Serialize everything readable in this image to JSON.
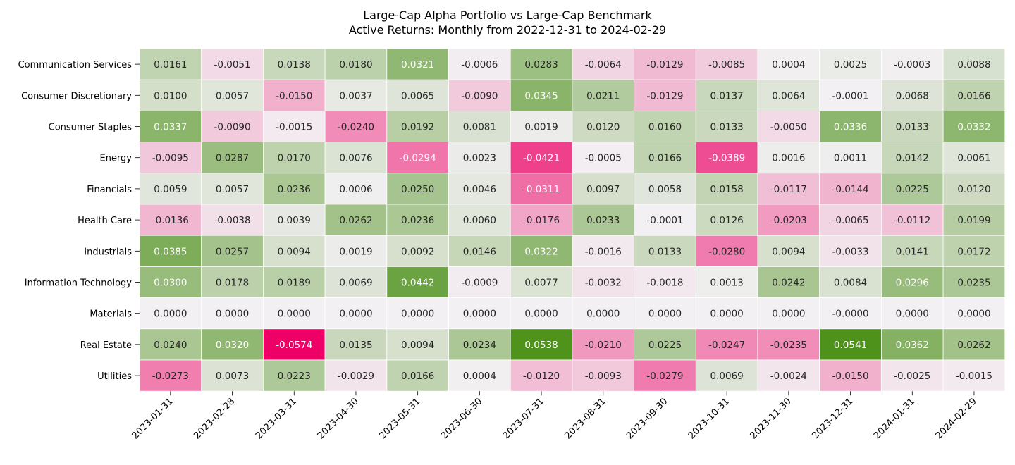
{
  "chart_data": {
    "type": "heatmap",
    "title": "Large-Cap Alpha Portfolio vs Large-Cap Benchmark",
    "subtitle": "Active Returns: Monthly from 2022-12-31 to 2024-02-29",
    "x": [
      "2023-01-31",
      "2023-02-28",
      "2023-03-31",
      "2023-04-30",
      "2023-05-31",
      "2023-06-30",
      "2023-07-31",
      "2023-08-31",
      "2023-09-30",
      "2023-10-31",
      "2023-11-30",
      "2023-12-31",
      "2024-01-31",
      "2024-02-29"
    ],
    "y": [
      "Communication Services",
      "Consumer Discretionary",
      "Consumer Staples",
      "Energy",
      "Financials",
      "Health Care",
      "Industrials",
      "Information Technology",
      "Materials",
      "Real Estate",
      "Utilities"
    ],
    "values": [
      [
        "0.0161",
        "-0.0051",
        "0.0138",
        "0.0180",
        "0.0321",
        "-0.0006",
        "0.0283",
        "-0.0064",
        "-0.0129",
        "-0.0085",
        "0.0004",
        "0.0025",
        "-0.0003",
        "0.0088"
      ],
      [
        "0.0100",
        "0.0057",
        "-0.0150",
        "0.0037",
        "0.0065",
        "-0.0090",
        "0.0345",
        "0.0211",
        "-0.0129",
        "0.0137",
        "0.0064",
        "-0.0001",
        "0.0068",
        "0.0166"
      ],
      [
        "0.0337",
        "-0.0090",
        "-0.0015",
        "-0.0240",
        "0.0192",
        "0.0081",
        "0.0019",
        "0.0120",
        "0.0160",
        "0.0133",
        "-0.0050",
        "0.0336",
        "0.0133",
        "0.0332"
      ],
      [
        "-0.0095",
        "0.0287",
        "0.0170",
        "0.0076",
        "-0.0294",
        "0.0023",
        "-0.0421",
        "-0.0005",
        "0.0166",
        "-0.0389",
        "0.0016",
        "0.0011",
        "0.0142",
        "0.0061"
      ],
      [
        "0.0059",
        "0.0057",
        "0.0236",
        "0.0006",
        "0.0250",
        "0.0046",
        "-0.0311",
        "0.0097",
        "0.0058",
        "0.0158",
        "-0.0117",
        "-0.0144",
        "0.0225",
        "0.0120"
      ],
      [
        "-0.0136",
        "-0.0038",
        "0.0039",
        "0.0262",
        "0.0236",
        "0.0060",
        "-0.0176",
        "0.0233",
        "-0.0001",
        "0.0126",
        "-0.0203",
        "-0.0065",
        "-0.0112",
        "0.0199"
      ],
      [
        "0.0385",
        "0.0257",
        "0.0094",
        "0.0019",
        "0.0092",
        "0.0146",
        "0.0322",
        "-0.0016",
        "0.0133",
        "-0.0280",
        "0.0094",
        "-0.0033",
        "0.0141",
        "0.0172"
      ],
      [
        "0.0300",
        "0.0178",
        "0.0189",
        "0.0069",
        "0.0442",
        "-0.0009",
        "0.0077",
        "-0.0032",
        "-0.0018",
        "0.0013",
        "0.0242",
        "0.0084",
        "0.0296",
        "0.0235"
      ],
      [
        "0.0000",
        "0.0000",
        "0.0000",
        "0.0000",
        "0.0000",
        "0.0000",
        "0.0000",
        "0.0000",
        "0.0000",
        "0.0000",
        "0.0000",
        "-0.0000",
        "0.0000",
        "0.0000"
      ],
      [
        "0.0240",
        "0.0320",
        "-0.0574",
        "0.0135",
        "0.0094",
        "0.0234",
        "0.0538",
        "-0.0210",
        "0.0225",
        "-0.0247",
        "-0.0235",
        "0.0541",
        "0.0362",
        "0.0262"
      ],
      [
        "-0.0273",
        "0.0073",
        "0.0223",
        "-0.0029",
        "0.0166",
        "0.0004",
        "-0.0120",
        "-0.0093",
        "-0.0279",
        "0.0069",
        "-0.0024",
        "-0.0150",
        "-0.0025",
        "-0.0015"
      ]
    ],
    "color_scale": {
      "range": [
        -0.0574,
        0.0574
      ],
      "negative_color": "#ee0066",
      "center_color": "#f2f0f2",
      "positive_color": "#448c0e"
    },
    "grid": false,
    "legend": "none"
  }
}
